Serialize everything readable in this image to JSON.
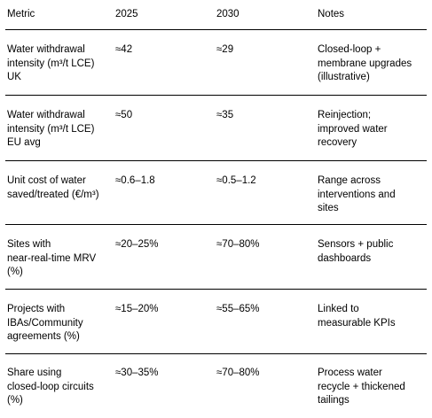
{
  "table": {
    "headers": [
      "Metric",
      "2025",
      "2030",
      "Notes"
    ],
    "rows": [
      {
        "metric": [
          "Water withdrawal",
          "intensity (m³/t LCE)",
          "UK"
        ],
        "y2025": "≈42",
        "y2030": "≈29",
        "notes": [
          "Closed-loop +",
          "membrane upgrades",
          "(illustrative)"
        ]
      },
      {
        "metric": [
          "Water withdrawal",
          "intensity (m³/t LCE)",
          "EU avg"
        ],
        "y2025": "≈50",
        "y2030": "≈35",
        "notes": [
          "Reinjection;",
          "improved water",
          "recovery"
        ]
      },
      {
        "metric": [
          "Unit cost of water",
          "saved/treated (€/m³)"
        ],
        "y2025": "≈0.6–1.8",
        "y2030": "≈0.5–1.2",
        "notes": [
          "Range across",
          "interventions and",
          "sites"
        ]
      },
      {
        "metric": [
          "Sites with",
          "near-real-time MRV",
          "(%)"
        ],
        "y2025": "≈20–25%",
        "y2030": "≈70–80%",
        "notes": [
          "Sensors + public",
          "dashboards"
        ]
      },
      {
        "metric": [
          "Projects with",
          "IBAs/Community",
          "agreements (%)"
        ],
        "y2025": "≈15–20%",
        "y2030": "≈55–65%",
        "notes": [
          "Linked to",
          "measurable KPIs"
        ]
      },
      {
        "metric": [
          "Share using",
          "closed-loop circuits",
          "(%)"
        ],
        "y2025": "≈30–35%",
        "y2030": "≈70–80%",
        "notes": [
          "Process water",
          "recycle + thickened",
          "tailings"
        ]
      }
    ]
  }
}
